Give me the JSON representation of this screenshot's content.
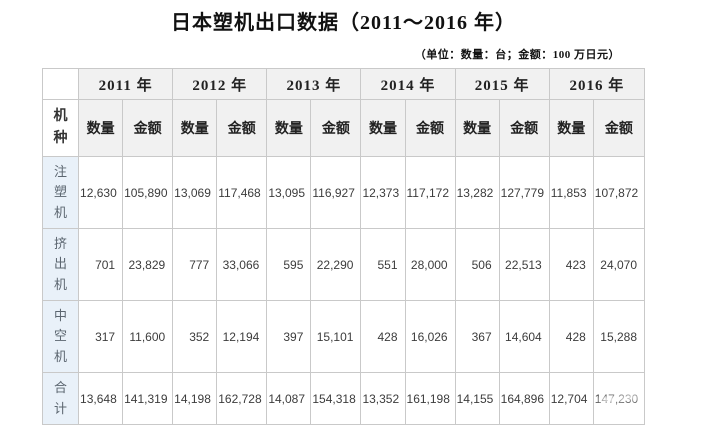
{
  "page": {
    "title": "日本塑机出口数据（2011～2016 年）",
    "unit_note": "（单位：数量：台；金额：100 万日元）"
  },
  "table": {
    "corner_label": "机种",
    "years": [
      "2011 年",
      "2012 年",
      "2013 年",
      "2014 年",
      "2015 年",
      "2016 年"
    ],
    "sub_headers": {
      "quantity": "数量",
      "amount": "金额"
    },
    "rows": [
      {
        "label": "注塑机",
        "cells": [
          "12,630",
          "105,890",
          "13,069",
          "117,468",
          "13,095",
          "116,927",
          "12,373",
          "117,172",
          "13,282",
          "127,779",
          "11,853",
          "107,872"
        ]
      },
      {
        "label": "挤出机",
        "cells": [
          "701",
          "23,829",
          "777",
          "33,066",
          "595",
          "22,290",
          "551",
          "28,000",
          "506",
          "22,513",
          "423",
          "24,070"
        ]
      },
      {
        "label": "中空机",
        "cells": [
          "317",
          "11,600",
          "352",
          "12,194",
          "397",
          "15,101",
          "428",
          "16,026",
          "367",
          "14,604",
          "428",
          "15,288"
        ]
      },
      {
        "label": "合计",
        "cells": [
          "13,648",
          "141,319",
          "14,198",
          "162,728",
          "14,087",
          "154,318",
          "13,352",
          "161,198",
          "14,155",
          "164,896",
          "12,704",
          "147,230"
        ]
      }
    ],
    "colors": {
      "header_bg": "#f1f1f1",
      "label_bg": "#e9f1f9",
      "border": "#c9c9c9"
    }
  }
}
